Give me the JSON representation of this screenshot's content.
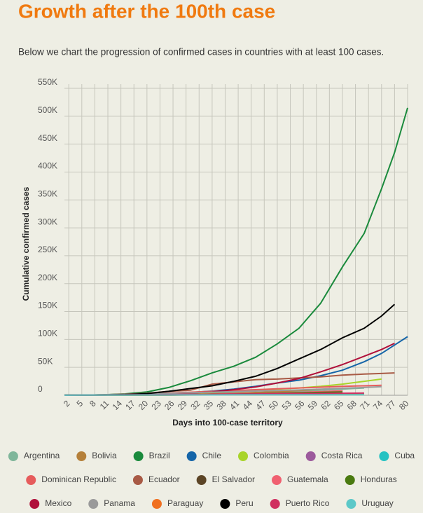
{
  "chart_data": {
    "type": "line",
    "title": "Growth after the 100th case",
    "subtitle": "Below we chart the progression of confirmed cases in countries with at least 100 cases.",
    "x_label": "Days into 100-case territory",
    "y_label": "Cumulative confirmed cases",
    "x": [
      1,
      5,
      10,
      15,
      20,
      25,
      30,
      35,
      40,
      45,
      50,
      55,
      60,
      65,
      70,
      74,
      77,
      80
    ],
    "xlim": [
      1,
      80
    ],
    "xticks": [
      2,
      5,
      8,
      11,
      14,
      17,
      20,
      23,
      26,
      29,
      32,
      35,
      38,
      41,
      44,
      47,
      50,
      53,
      56,
      59,
      62,
      65,
      68,
      71,
      74,
      77,
      80
    ],
    "ylim": [
      0,
      550000
    ],
    "yticks": [
      0,
      {
        "value": 50000,
        "label": "50K"
      },
      {
        "value": 100000,
        "label": "100K"
      },
      {
        "value": 150000,
        "label": "150K"
      },
      {
        "value": 200000,
        "label": "200K"
      },
      {
        "value": 250000,
        "label": "250K"
      },
      {
        "value": 300000,
        "label": "300K"
      },
      {
        "value": 350000,
        "label": "350K"
      },
      {
        "value": 400000,
        "label": "400K"
      },
      {
        "value": 450000,
        "label": "450K"
      },
      {
        "value": 500000,
        "label": "500K"
      },
      {
        "value": 550000,
        "label": "550K"
      }
    ],
    "grid": true,
    "series": [
      {
        "name": "Argentina",
        "color": "#7fb69a",
        "values": [
          100,
          300,
          700,
          1200,
          1800,
          2300,
          2800,
          3400,
          4000,
          4600,
          5600,
          7000,
          9000,
          11000,
          13000,
          null,
          null,
          null
        ]
      },
      {
        "name": "Bolivia",
        "color": "#b5803a",
        "values": [
          100,
          150,
          250,
          400,
          600,
          900,
          1500,
          2500,
          3500,
          5000,
          6500,
          8500,
          10500,
          null,
          null,
          null,
          null,
          null
        ]
      },
      {
        "name": "Brazil",
        "color": "#1a8a3c",
        "values": [
          100,
          300,
          900,
          2500,
          6000,
          14000,
          26000,
          40000,
          52000,
          68000,
          92000,
          120000,
          165000,
          230000,
          290000,
          370000,
          435000,
          515000
        ]
      },
      {
        "name": "Chile",
        "color": "#1565a8",
        "values": [
          100,
          200,
          400,
          800,
          1500,
          3000,
          5000,
          7500,
          11000,
          16000,
          22000,
          27000,
          35000,
          45000,
          60000,
          75000,
          90000,
          105000
        ]
      },
      {
        "name": "Colombia",
        "color": "#a8d42a",
        "values": [
          100,
          200,
          500,
          1000,
          1500,
          2500,
          3500,
          5000,
          7000,
          9000,
          11000,
          13000,
          16000,
          20000,
          25000,
          29000,
          null,
          null
        ]
      },
      {
        "name": "Costa Rica",
        "color": "#9c5a9c",
        "values": [
          100,
          200,
          300,
          450,
          550,
          650,
          700,
          750,
          800,
          850,
          900,
          950,
          1000,
          1050,
          1100,
          null,
          null,
          null
        ]
      },
      {
        "name": "Cuba",
        "color": "#26c2c2",
        "values": [
          100,
          200,
          400,
          700,
          1000,
          1300,
          1600,
          1750,
          1850,
          1900,
          1950,
          2000,
          2050,
          2100,
          2150,
          null,
          null,
          null
        ]
      },
      {
        "name": "Dominican Republic",
        "color": "#e65c5c",
        "values": [
          100,
          300,
          800,
          1600,
          2500,
          4000,
          5500,
          7000,
          8500,
          10000,
          11500,
          13000,
          14500,
          16000,
          17000,
          18000,
          null,
          null
        ]
      },
      {
        "name": "Ecuador",
        "color": "#a85a45",
        "values": [
          100,
          300,
          1000,
          2000,
          3500,
          7000,
          9000,
          20000,
          24000,
          28000,
          29000,
          31000,
          33000,
          36000,
          38000,
          39000,
          40000,
          null
        ]
      },
      {
        "name": "El Salvador",
        "color": "#5c4526",
        "values": [
          100,
          150,
          200,
          250,
          300,
          400,
          600,
          900,
          1300,
          1700,
          2100,
          2500,
          3000,
          null,
          null,
          null,
          null,
          null
        ]
      },
      {
        "name": "Guatemala",
        "color": "#f06070",
        "values": [
          100,
          150,
          250,
          400,
          600,
          900,
          1300,
          1800,
          2500,
          3300,
          4200,
          5200,
          6500,
          8000,
          null,
          null,
          null,
          null
        ]
      },
      {
        "name": "Honduras",
        "color": "#4a7a10",
        "values": [
          100,
          200,
          300,
          400,
          500,
          700,
          1000,
          1500,
          2000,
          2700,
          3500,
          4300,
          5200,
          6000,
          null,
          null,
          null,
          null
        ]
      },
      {
        "name": "Mexico",
        "color": "#b0103a",
        "values": [
          100,
          200,
          400,
          800,
          1500,
          2500,
          4000,
          6000,
          10000,
          15000,
          22000,
          30000,
          42000,
          55000,
          70000,
          82000,
          93000,
          null
        ]
      },
      {
        "name": "Panama",
        "color": "#9a9a9a",
        "values": [
          100,
          300,
          900,
          1500,
          2500,
          3500,
          4500,
          5500,
          6500,
          7500,
          8500,
          9500,
          11000,
          12500,
          14000,
          15500,
          null,
          null
        ]
      },
      {
        "name": "Paraguay",
        "color": "#f07020",
        "values": [
          100,
          130,
          160,
          200,
          250,
          350,
          450,
          600,
          750,
          850,
          950,
          1000,
          1050,
          1100,
          1150,
          null,
          null,
          null
        ]
      },
      {
        "name": "Peru",
        "color": "#000000",
        "values": [
          100,
          200,
          500,
          1200,
          3000,
          7000,
          12000,
          17000,
          25000,
          34000,
          48000,
          65000,
          82000,
          103000,
          120000,
          142000,
          163000,
          null
        ]
      },
      {
        "name": "Puerto Rico",
        "color": "#d03060",
        "values": [
          100,
          200,
          400,
          700,
          1000,
          1300,
          1500,
          1800,
          2100,
          2400,
          2700,
          3000,
          3300,
          3600,
          3900,
          null,
          null,
          null
        ]
      },
      {
        "name": "Uruguay",
        "color": "#5cc8c8",
        "values": [
          100,
          200,
          300,
          400,
          500,
          550,
          600,
          650,
          700,
          720,
          740,
          760,
          780,
          800,
          830,
          null,
          null,
          null
        ]
      }
    ]
  }
}
